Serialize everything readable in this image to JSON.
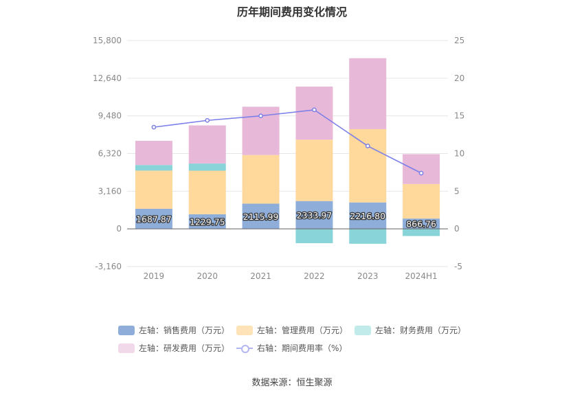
{
  "title": "历年期间费用变化情况",
  "source": "数据来源：恒生聚源",
  "colors": {
    "sales": "#8eadd9",
    "admin": "#ffd89c",
    "finance": "#88d4d8",
    "rd": "#e7b8d8",
    "rate": "#7b7fe8",
    "grid": "#e6e6e6",
    "axis_text": "#888888"
  },
  "legend": [
    {
      "key": "sales",
      "label": "左轴：销售费用（万元）",
      "kind": "box"
    },
    {
      "key": "admin",
      "label": "左轴：管理费用（万元）",
      "kind": "box"
    },
    {
      "key": "finance",
      "label": "左轴：财务费用（万元）",
      "kind": "box"
    },
    {
      "key": "rd",
      "label": "左轴：研发费用（万元）",
      "kind": "box"
    },
    {
      "key": "rate",
      "label": "右轴：期间费用率（%）",
      "kind": "line"
    }
  ],
  "chart_data": {
    "type": "bar",
    "stacked": true,
    "categories": [
      "2019",
      "2020",
      "2021",
      "2022",
      "2023",
      "2024H1"
    ],
    "left_axis": {
      "ylim": [
        -3160,
        15800
      ],
      "ticks": [
        "-3,160",
        "0",
        "3,160",
        "6,320",
        "9,480",
        "12,640",
        "15,800"
      ]
    },
    "right_axis": {
      "ylim": [
        -5,
        25
      ],
      "ticks": [
        "-5",
        "0",
        "5",
        "10",
        "15",
        "20",
        "25"
      ]
    },
    "series": [
      {
        "name": "左轴：销售费用（万元）",
        "key": "sales",
        "axis": "left",
        "values": [
          1687.87,
          1229.75,
          2115.99,
          2333.97,
          2216.8,
          866.76
        ],
        "labels": [
          "1687.87",
          "1229.75",
          "2115.99",
          "2333.97",
          "2216.80",
          "866.76"
        ]
      },
      {
        "name": "左轴：管理费用（万元）",
        "key": "admin",
        "axis": "left",
        "values": [
          3200,
          3650,
          4080,
          5150,
          6150,
          2900
        ]
      },
      {
        "name": "左轴：财务费用（万元）",
        "key": "finance",
        "axis": "left",
        "values": [
          470,
          600,
          0,
          -1200,
          -1250,
          -600
        ]
      },
      {
        "name": "左轴：研发费用（万元）",
        "key": "rd",
        "axis": "left",
        "values": [
          2030,
          3200,
          4050,
          4450,
          5950,
          2500
        ]
      },
      {
        "name": "右轴：期间费用率（%）",
        "key": "rate",
        "axis": "right",
        "type": "line",
        "values": [
          13.5,
          14.4,
          15.0,
          15.8,
          11.0,
          7.4
        ]
      }
    ],
    "grid": true
  }
}
